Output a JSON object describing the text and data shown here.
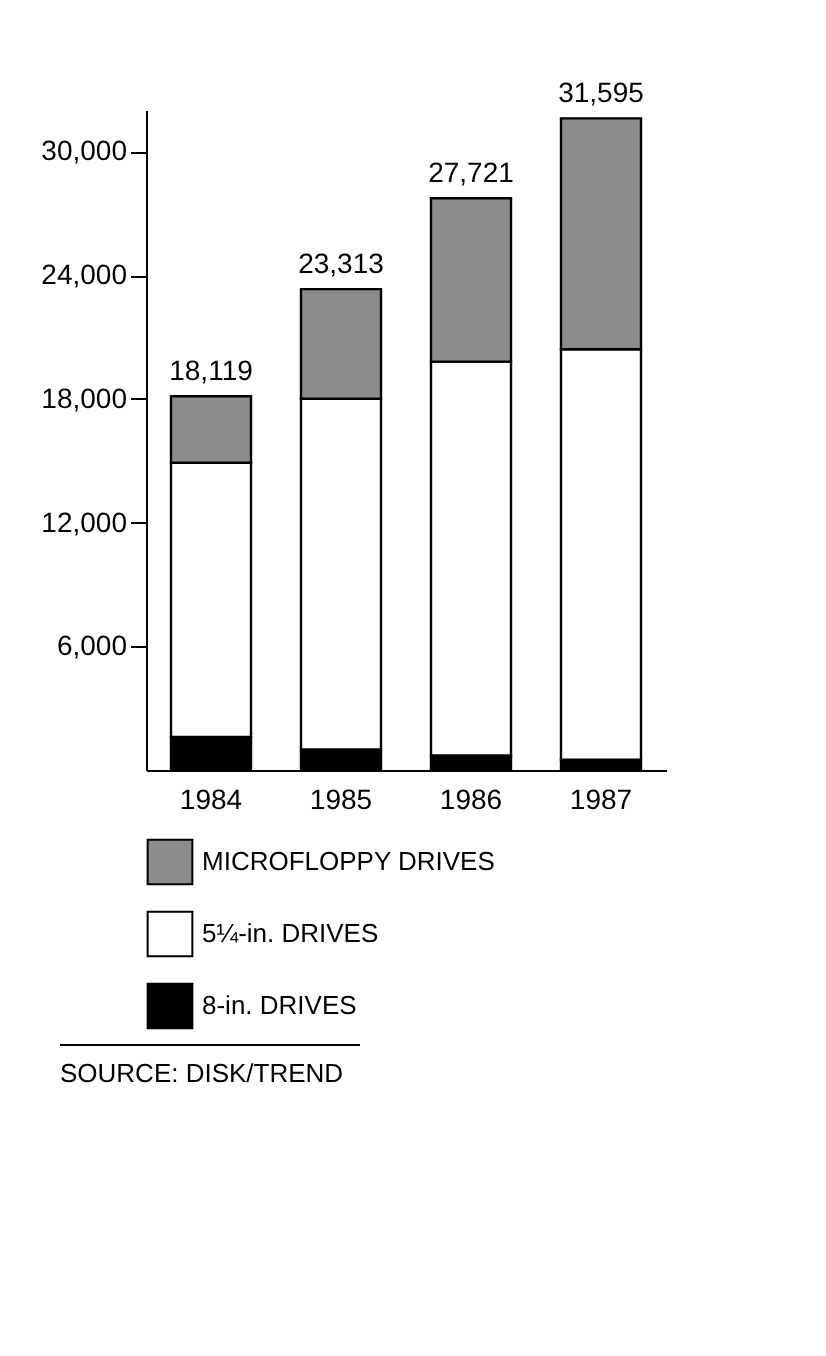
{
  "chart_data": {
    "type": "bar",
    "stacked": true,
    "categories": [
      "1984",
      "1985",
      "1986",
      "1987"
    ],
    "series": [
      {
        "name": "8-in. DRIVES",
        "color": "#000000",
        "values": [
          1600,
          1000,
          700,
          500
        ]
      },
      {
        "name": "5¼-in. DRIVES",
        "color": "#ffffff",
        "values": [
          13300,
          17000,
          19100,
          19900
        ]
      },
      {
        "name": "MICROFLOPPY DRIVES",
        "color": "#8c8c8c",
        "values": [
          3219,
          5313,
          7921,
          11195
        ]
      }
    ],
    "totals": [
      "18,119",
      "23,313",
      "27,721",
      "31,595"
    ],
    "ylim": [
      0,
      32000
    ],
    "yticks": [
      {
        "value": 6000,
        "label": "6,000"
      },
      {
        "value": 12000,
        "label": "12,000"
      },
      {
        "value": 18000,
        "label": "18,000"
      },
      {
        "value": 24000,
        "label": "24,000"
      },
      {
        "value": 30000,
        "label": "30,000"
      }
    ],
    "grid": false,
    "legend": "bottom left",
    "annotations": [
      "SOURCE: DISK/TREND"
    ]
  }
}
